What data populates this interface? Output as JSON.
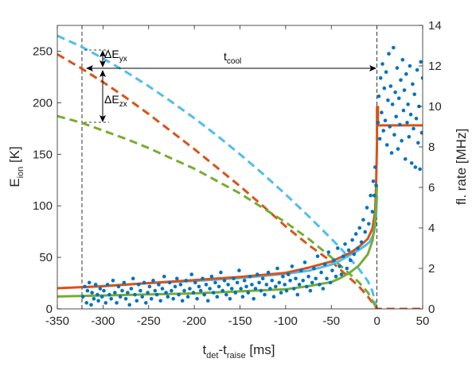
{
  "chart_data": {
    "type": "line",
    "xlabel": {
      "main": "t",
      "sub1": "det",
      "mid": "-t",
      "sub2": "raise",
      "unit": " [ms]"
    },
    "ylabel_left": {
      "main": "E",
      "sub": "ion",
      "unit": " [K]"
    },
    "ylabel_right": "fl. rate [MHz]",
    "xlim": [
      -350,
      50
    ],
    "ylim_left": [
      0,
      275
    ],
    "ylim_right": [
      0,
      14
    ],
    "x_ticks": [
      "-350",
      "-300",
      "-250",
      "-200",
      "-150",
      "-100",
      "-50",
      "0",
      "50"
    ],
    "y_left_ticks": [
      "0",
      "50",
      "100",
      "150",
      "200",
      "250"
    ],
    "y_right_ticks": [
      "0",
      "2",
      "4",
      "6",
      "8",
      "10",
      "12",
      "14"
    ],
    "grid": false,
    "annotations": {
      "t_cool": {
        "main": "t",
        "sub": "cool"
      },
      "dE_yx": {
        "main": "ΔE",
        "sub": "yx"
      },
      "dE_zx": {
        "main": "ΔE",
        "sub": "zx"
      }
    },
    "vlines_x": [
      -323,
      0
    ],
    "series": [
      {
        "color": "#4DBEEE",
        "style": "dashed",
        "axis": "left",
        "x": [
          -350,
          -325,
          -300,
          -275,
          -250,
          -225,
          -200,
          -175,
          -150,
          -125,
          -100,
          -75,
          -50,
          -40,
          -30,
          -20,
          -10,
          -5,
          0
        ],
        "y": [
          265,
          255,
          243,
          230,
          216,
          201,
          185,
          168,
          150,
          131,
          111,
          90,
          68,
          59,
          49,
          39,
          27,
          17,
          0
        ]
      },
      {
        "color": "#D95319",
        "style": "dashed",
        "axis": "left",
        "x": [
          -350,
          -325,
          -300,
          -275,
          -250,
          -225,
          -200,
          -175,
          -150,
          -125,
          -100,
          -75,
          -50,
          -40,
          -30,
          -20,
          -10,
          -5,
          0,
          5,
          50
        ],
        "y": [
          247,
          234,
          220,
          205,
          189,
          172,
          155,
          137,
          119,
          100,
          80,
          62,
          46,
          38,
          30,
          22,
          12,
          6,
          0,
          0,
          0
        ]
      },
      {
        "color": "#77AC30",
        "style": "dashed",
        "axis": "left",
        "x": [
          -350,
          -325,
          -300,
          -275,
          -250,
          -225,
          -200,
          -175,
          -150,
          -125,
          -100,
          -75,
          -50,
          -40,
          -30,
          -20,
          -10,
          -5,
          0
        ],
        "y": [
          187,
          181,
          173,
          165,
          156,
          146,
          136,
          124,
          112,
          98,
          84,
          68,
          50,
          42,
          34,
          26,
          16,
          8,
          0
        ]
      },
      {
        "color": "#4DBEEE",
        "style": "solid",
        "axis": "left",
        "x": [
          -323,
          -300,
          -250,
          -200,
          -150,
          -100,
          -75,
          -50,
          -40,
          -30,
          -20,
          -12,
          -8,
          -5,
          -3,
          -2,
          -1,
          0
        ],
        "y": [
          21,
          22,
          25,
          27,
          30,
          34,
          37,
          43,
          47,
          52,
          57,
          62,
          65,
          70,
          75,
          80,
          90,
          110
        ]
      },
      {
        "color": "#D95319",
        "style": "solid",
        "axis": "left",
        "x": [
          -350,
          -300,
          -250,
          -200,
          -150,
          -100,
          -75,
          -50,
          -40,
          -30,
          -20,
          -10,
          -5,
          -2,
          -1,
          0,
          0,
          1,
          1,
          50
        ],
        "y": [
          20,
          22,
          25,
          28,
          31,
          35,
          40,
          46,
          50,
          54,
          60,
          68,
          78,
          95,
          120,
          160,
          196,
          196,
          178,
          178
        ]
      },
      {
        "color": "#77AC30",
        "style": "solid",
        "axis": "left",
        "x": [
          -350,
          -300,
          -250,
          -200,
          -150,
          -100,
          -75,
          -50,
          -40,
          -30,
          -20,
          -10,
          -5,
          -2,
          -1,
          0
        ],
        "y": [
          12,
          13,
          14,
          15,
          17,
          19,
          22,
          26,
          30,
          35,
          42,
          53,
          66,
          85,
          100,
          120
        ]
      }
    ],
    "scatter": {
      "color": "#0072BD",
      "axis": "right",
      "points": [
        [
          -322,
          0.6
        ],
        [
          -320,
          1.1
        ],
        [
          -318,
          0.3
        ],
        [
          -317,
          0.9
        ],
        [
          -315,
          1.3
        ],
        [
          -313,
          0.2
        ],
        [
          -312,
          0.8
        ],
        [
          -310,
          0.5
        ],
        [
          -308,
          1.2
        ],
        [
          -306,
          0.7
        ],
        [
          -305,
          0.4
        ],
        [
          -303,
          1.0
        ],
        [
          -301,
          0.6
        ],
        [
          -299,
          0.9
        ],
        [
          -297,
          0.3
        ],
        [
          -295,
          1.2
        ],
        [
          -293,
          0.7
        ],
        [
          -291,
          0.5
        ],
        [
          -289,
          1.4
        ],
        [
          -287,
          0.8
        ],
        [
          -285,
          0.3
        ],
        [
          -283,
          1.1
        ],
        [
          -281,
          0.6
        ],
        [
          -279,
          0.9
        ],
        [
          -277,
          1.3
        ],
        [
          -275,
          0.5
        ],
        [
          -273,
          0.8
        ],
        [
          -271,
          0.2
        ],
        [
          -269,
          1.0
        ],
        [
          -267,
          1.5
        ],
        [
          -265,
          0.7
        ],
        [
          -263,
          0.4
        ],
        [
          -261,
          1.2
        ],
        [
          -259,
          0.9
        ],
        [
          -257,
          0.6
        ],
        [
          -255,
          1.3
        ],
        [
          -253,
          0.3
        ],
        [
          -251,
          0.8
        ],
        [
          -249,
          1.1
        ],
        [
          -247,
          0.5
        ],
        [
          -245,
          1.4
        ],
        [
          -243,
          0.9
        ],
        [
          -241,
          0.7
        ],
        [
          -239,
          1.2
        ],
        [
          -237,
          0.4
        ],
        [
          -235,
          1.0
        ],
        [
          -233,
          1.6
        ],
        [
          -231,
          0.8
        ],
        [
          -229,
          0.6
        ],
        [
          -227,
          1.3
        ],
        [
          -225,
          0.9
        ],
        [
          -223,
          0.5
        ],
        [
          -221,
          1.1
        ],
        [
          -219,
          1.5
        ],
        [
          -217,
          0.7
        ],
        [
          -215,
          1.2
        ],
        [
          -213,
          0.4
        ],
        [
          -211,
          0.9
        ],
        [
          -209,
          1.4
        ],
        [
          -207,
          0.6
        ],
        [
          -205,
          1.0
        ],
        [
          -203,
          1.7
        ],
        [
          -201,
          0.8
        ],
        [
          -199,
          1.3
        ],
        [
          -197,
          0.5
        ],
        [
          -195,
          1.1
        ],
        [
          -193,
          0.9
        ],
        [
          -191,
          1.5
        ],
        [
          -189,
          0.7
        ],
        [
          -187,
          1.2
        ],
        [
          -185,
          0.4
        ],
        [
          -183,
          1.0
        ],
        [
          -181,
          1.6
        ],
        [
          -179,
          0.8
        ],
        [
          -177,
          1.3
        ],
        [
          -175,
          0.6
        ],
        [
          -173,
          1.1
        ],
        [
          -171,
          1.8
        ],
        [
          -169,
          0.9
        ],
        [
          -167,
          1.4
        ],
        [
          -165,
          0.7
        ],
        [
          -163,
          1.2
        ],
        [
          -161,
          0.5
        ],
        [
          -159,
          1.0
        ],
        [
          -157,
          1.5
        ],
        [
          -155,
          0.8
        ],
        [
          -153,
          1.3
        ],
        [
          -151,
          1.9
        ],
        [
          -149,
          1.0
        ],
        [
          -147,
          0.6
        ],
        [
          -145,
          1.4
        ],
        [
          -143,
          1.1
        ],
        [
          -141,
          0.8
        ],
        [
          -139,
          1.6
        ],
        [
          -137,
          1.2
        ],
        [
          -135,
          0.5
        ],
        [
          -133,
          1.0
        ],
        [
          -131,
          1.7
        ],
        [
          -129,
          1.3
        ],
        [
          -127,
          0.9
        ],
        [
          -125,
          1.5
        ],
        [
          -123,
          0.7
        ],
        [
          -121,
          1.2
        ],
        [
          -119,
          1.8
        ],
        [
          -117,
          1.0
        ],
        [
          -115,
          1.4
        ],
        [
          -113,
          0.6
        ],
        [
          -111,
          1.1
        ],
        [
          -109,
          2.0
        ],
        [
          -107,
          1.3
        ],
        [
          -105,
          0.8
        ],
        [
          -103,
          1.6
        ],
        [
          -101,
          1.2
        ],
        [
          -99,
          0.9
        ],
        [
          -97,
          1.7
        ],
        [
          -95,
          1.4
        ],
        [
          -93,
          2.1
        ],
        [
          -91,
          1.0
        ],
        [
          -89,
          1.5
        ],
        [
          -87,
          0.7
        ],
        [
          -85,
          1.2
        ],
        [
          -83,
          1.9
        ],
        [
          -81,
          1.4
        ],
        [
          -79,
          2.3
        ],
        [
          -77,
          1.1
        ],
        [
          -75,
          1.6
        ],
        [
          -73,
          0.9
        ],
        [
          -71,
          1.3
        ],
        [
          -69,
          2.0
        ],
        [
          -67,
          1.5
        ],
        [
          -65,
          2.6
        ],
        [
          -63,
          1.2
        ],
        [
          -61,
          1.8
        ],
        [
          -59,
          1.0
        ],
        [
          -57,
          2.2
        ],
        [
          -55,
          1.5
        ],
        [
          -53,
          2.8
        ],
        [
          -51,
          1.3
        ],
        [
          -49,
          1.9
        ],
        [
          -47,
          2.4
        ],
        [
          -45,
          1.6
        ],
        [
          -43,
          3.0
        ],
        [
          -41,
          2.1
        ],
        [
          -39,
          1.7
        ],
        [
          -37,
          2.6
        ],
        [
          -35,
          3.2
        ],
        [
          -33,
          2.0
        ],
        [
          -31,
          2.9
        ],
        [
          -29,
          2.4
        ],
        [
          -27,
          3.4
        ],
        [
          -25,
          2.7
        ],
        [
          -23,
          3.7
        ],
        [
          -21,
          3.0
        ],
        [
          -19,
          4.0
        ],
        [
          -17,
          3.3
        ],
        [
          -15,
          4.4
        ],
        [
          -13,
          3.8
        ],
        [
          -11,
          5.0
        ],
        [
          -9,
          4.2
        ],
        [
          -7,
          5.6
        ],
        [
          -5,
          4.8
        ],
        [
          -4,
          6.3
        ],
        [
          -3,
          5.6
        ],
        [
          -2,
          7.0
        ],
        [
          -1,
          6.1
        ],
        [
          1,
          9.2
        ],
        [
          2,
          10.5
        ],
        [
          3,
          8.4
        ],
        [
          4,
          11.4
        ],
        [
          5,
          9.7
        ],
        [
          6,
          12.1
        ],
        [
          7,
          8.8
        ],
        [
          8,
          10.9
        ],
        [
          9,
          9.3
        ],
        [
          10,
          11.7
        ],
        [
          11,
          8.1
        ],
        [
          12,
          10.3
        ],
        [
          13,
          12.6
        ],
        [
          14,
          9.0
        ],
        [
          15,
          11.0
        ],
        [
          16,
          7.7
        ],
        [
          17,
          10.1
        ],
        [
          18,
          12.9
        ],
        [
          19,
          8.6
        ],
        [
          20,
          10.7
        ],
        [
          21,
          9.5
        ],
        [
          22,
          11.9
        ],
        [
          23,
          7.9
        ],
        [
          24,
          10.4
        ],
        [
          25,
          9.1
        ],
        [
          26,
          11.3
        ],
        [
          27,
          8.3
        ],
        [
          28,
          12.3
        ],
        [
          29,
          9.8
        ],
        [
          30,
          10.8
        ],
        [
          31,
          7.4
        ],
        [
          32,
          11.6
        ],
        [
          33,
          9.2
        ],
        [
          34,
          10.1
        ],
        [
          35,
          8.5
        ],
        [
          36,
          12.0
        ],
        [
          37,
          9.6
        ],
        [
          38,
          7.2
        ],
        [
          39,
          11.1
        ],
        [
          40,
          8.9
        ],
        [
          41,
          10.6
        ],
        [
          42,
          7.0
        ],
        [
          43,
          9.4
        ],
        [
          44,
          11.8
        ],
        [
          45,
          8.2
        ],
        [
          46,
          10.0
        ],
        [
          47,
          6.9
        ],
        [
          48,
          12.2
        ],
        [
          49,
          8.7
        ],
        [
          50,
          11.4
        ]
      ]
    }
  }
}
